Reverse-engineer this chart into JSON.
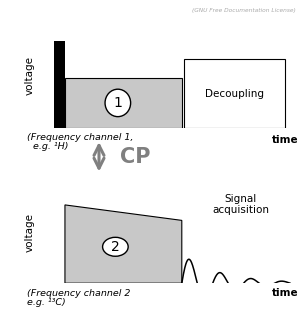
{
  "bg_color": "#ffffff",
  "gray_fill": "#c8c8c8",
  "black_fill": "#000000",
  "cp_arrow_color": "#808080",
  "license_text": "(GNU Free Documentation License)",
  "top_label": "voltage",
  "bottom_label": "voltage",
  "time_label": "time",
  "freq1_line1": "(Frequency channel 1,",
  "freq1_line2": "  e.g. ¹H)",
  "freq2_line1": "(Frequency channel 2",
  "freq2_line2": "e.g. ¹³C)",
  "cp_text": "CP",
  "decoupling_text": "Decoupling",
  "signal_line1": "Signal",
  "signal_line2": "acquisition",
  "circle1_text": "1",
  "circle2_text": "2"
}
